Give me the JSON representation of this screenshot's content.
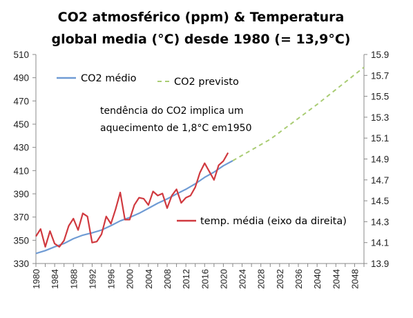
{
  "chart_data": {
    "type": "line",
    "title_line1": "CO2 atmosférico (ppm) & Temperatura",
    "title_line2": "global media (°C) desde 1980 (= 13,9°C)",
    "annotation_line1": "tendência do CO2 implica um",
    "annotation_line2": "aquecimento de 1,8°C em1950",
    "y_left": {
      "ylim": [
        330,
        510
      ],
      "ticks": [
        330,
        350,
        370,
        390,
        410,
        430,
        450,
        470,
        490,
        510
      ]
    },
    "y_right": {
      "ylim": [
        13.9,
        15.9
      ],
      "ticks": [
        "13.9",
        "14.1",
        "14.3",
        "14.5",
        "14.7",
        "14.9",
        "15.1",
        "15.3",
        "15.5",
        "15.7",
        "15.9"
      ]
    },
    "x": {
      "xlim": [
        1980,
        2050
      ],
      "ticks": [
        1980,
        1984,
        1988,
        1992,
        1996,
        2000,
        2004,
        2008,
        2012,
        2016,
        2020,
        2024,
        2028,
        2032,
        2036,
        2040,
        2044,
        2048
      ]
    },
    "series": [
      {
        "name": "CO2 médio",
        "axis": "left",
        "color": "#6f9bd4",
        "style": "solid",
        "x": [
          1980,
          1982,
          1984,
          1986,
          1988,
          1990,
          1992,
          1994,
          1996,
          1998,
          2000,
          2002,
          2004,
          2006,
          2008,
          2010,
          2012,
          2014,
          2016,
          2018,
          2020,
          2022
        ],
        "y": [
          338.7,
          341.1,
          344.4,
          347.2,
          351.4,
          354.4,
          356.4,
          358.8,
          362.6,
          366.7,
          369.6,
          373.2,
          377.5,
          381.9,
          385.6,
          389.9,
          393.9,
          398.6,
          404.2,
          408.7,
          414.2,
          418.5
        ]
      },
      {
        "name": "CO2 previsto",
        "axis": "left",
        "color": "#a9cc73",
        "style": "dashed",
        "x": [
          2022,
          2030,
          2040,
          2050
        ],
        "y": [
          418.5,
          437,
          467,
          499
        ]
      },
      {
        "name": "temp. média (eixo da direita)",
        "axis": "right",
        "color": "#d0393f",
        "style": "solid",
        "x": [
          1980,
          1981,
          1982,
          1983,
          1984,
          1985,
          1986,
          1987,
          1988,
          1989,
          1990,
          1991,
          1992,
          1993,
          1994,
          1995,
          1996,
          1997,
          1998,
          1999,
          2000,
          2001,
          2002,
          2003,
          2004,
          2005,
          2006,
          2007,
          2008,
          2009,
          2010,
          2011,
          2012,
          2013,
          2014,
          2015,
          2016,
          2017,
          2018,
          2019,
          2020,
          2021
        ],
        "y": [
          14.16,
          14.23,
          14.06,
          14.21,
          14.09,
          14.06,
          14.12,
          14.26,
          14.33,
          14.22,
          14.38,
          14.35,
          14.1,
          14.11,
          14.18,
          14.35,
          14.28,
          14.42,
          14.58,
          14.32,
          14.32,
          14.46,
          14.53,
          14.52,
          14.46,
          14.59,
          14.55,
          14.57,
          14.43,
          14.55,
          14.61,
          14.48,
          14.53,
          14.55,
          14.63,
          14.77,
          14.86,
          14.78,
          14.7,
          14.84,
          14.88,
          14.96
        ]
      }
    ],
    "grid": false,
    "legend": [
      {
        "label": "CO2 médio",
        "color": "#6f9bd4",
        "style": "solid"
      },
      {
        "label": "CO2 previsto",
        "color": "#a9cc73",
        "style": "dashed"
      },
      {
        "label": "temp. média (eixo da direita)",
        "color": "#d0393f",
        "style": "solid"
      }
    ]
  }
}
